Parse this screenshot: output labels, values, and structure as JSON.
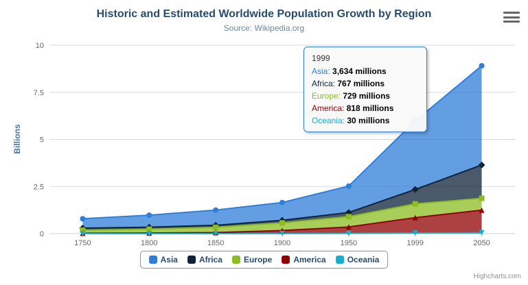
{
  "chart": {
    "title": "Historic and Estimated Worldwide Population Growth by Region",
    "subtitle": "Source: Wikipedia.org",
    "y_axis_title": "Billions",
    "credits": "Highcharts.com"
  },
  "chart_data": {
    "type": "area",
    "stacked": true,
    "categories": [
      "1750",
      "1800",
      "1850",
      "1900",
      "1950",
      "1999",
      "2050"
    ],
    "unit": "millions",
    "series": [
      {
        "name": "Asia",
        "color": "#2f7ed8",
        "marker": "circle",
        "values": [
          502,
          635,
          809,
          947,
          1402,
          3634,
          5268
        ]
      },
      {
        "name": "Africa",
        "color": "#0d233a",
        "marker": "diamond",
        "values": [
          106,
          107,
          111,
          133,
          221,
          767,
          1766
        ]
      },
      {
        "name": "Europe",
        "color": "#8bbc21",
        "marker": "square",
        "values": [
          163,
          203,
          276,
          408,
          547,
          729,
          628
        ]
      },
      {
        "name": "America",
        "color": "#910000",
        "marker": "triangle",
        "values": [
          18,
          31,
          54,
          156,
          339,
          818,
          1201
        ]
      },
      {
        "name": "Oceania",
        "color": "#1aadce",
        "marker": "triangle-down",
        "values": [
          2,
          2,
          2,
          6,
          13,
          30,
          46
        ]
      }
    ],
    "ylabel": "Billions",
    "yticks": [
      0,
      2.5,
      5,
      7.5,
      10
    ],
    "ylim": [
      0,
      10
    ],
    "grid": true,
    "legend_position": "bottom",
    "hover": {
      "category": "1999",
      "series": "Asia"
    }
  },
  "tooltip": {
    "header": "1999",
    "rows": [
      {
        "label": "Asia",
        "value": "3,634 millions"
      },
      {
        "label": "Africa",
        "value": "767 millions"
      },
      {
        "label": "Europe",
        "value": "729 millions"
      },
      {
        "label": "America",
        "value": "818 millions"
      },
      {
        "label": "Oceania",
        "value": "30 millions"
      }
    ]
  }
}
